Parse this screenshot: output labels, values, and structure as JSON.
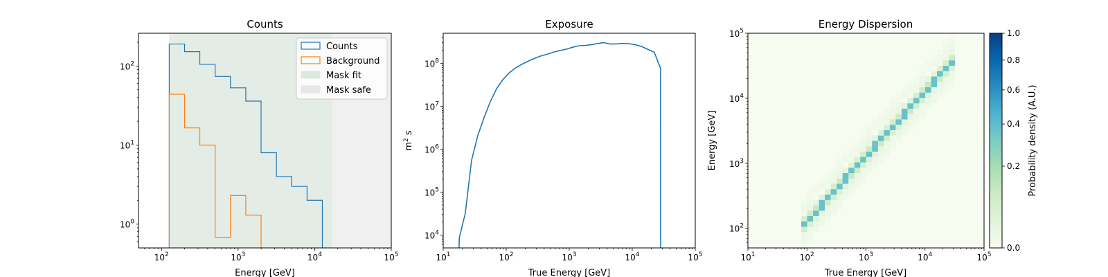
{
  "chart_data": [
    {
      "type": "step-histogram",
      "title": "Counts",
      "xlabel": "Energy [GeV]",
      "xscale": "log",
      "yscale": "log",
      "xlim": [
        50,
        100000
      ],
      "ylim": [
        0.5,
        260
      ],
      "xticks": [
        {
          "v": 100,
          "label": "10^2"
        },
        {
          "v": 1000,
          "label": "10^3"
        },
        {
          "v": 10000,
          "label": "10^4"
        },
        {
          "v": 100000,
          "label": "10^5"
        }
      ],
      "yticks": [
        {
          "v": 1,
          "label": "10^0"
        },
        {
          "v": 10,
          "label": "10^1"
        },
        {
          "v": 100,
          "label": "10^2"
        }
      ],
      "bin_edges": [
        126,
        200,
        316,
        501,
        794,
        1259,
        1995,
        3162,
        5012,
        7943,
        12589
      ],
      "series": [
        {
          "name": "Counts",
          "color": "#1f77b4",
          "values": [
            190,
            152,
            105,
            74,
            53,
            36,
            8,
            4,
            3,
            2
          ]
        },
        {
          "name": "Background",
          "color": "#ff7f0e",
          "values": [
            44,
            16.5,
            10,
            0.68,
            2.3,
            1.3,
            null,
            null,
            null,
            null
          ]
        }
      ],
      "shaded_regions": [
        {
          "name": "Mask fit",
          "x_from": 126,
          "x_to": 17000,
          "color": "#d9e7dc"
        },
        {
          "name": "Mask safe",
          "x_from": 126,
          "x_to": 100000,
          "color": "#e6e6e6"
        }
      ],
      "legend": [
        "Counts",
        "Background",
        "Mask fit",
        "Mask safe"
      ]
    },
    {
      "type": "line",
      "title": "Exposure",
      "xlabel": "True Energy [GeV]",
      "ylabel": "m² s",
      "ylabel_base": "m",
      "ylabel_sup": "2",
      "ylabel_rest": " s",
      "xscale": "log",
      "yscale": "log",
      "xlim": [
        10,
        100000
      ],
      "ylim": [
        5000,
        500000000
      ],
      "xticks": [
        {
          "v": 10,
          "label": "10^1"
        },
        {
          "v": 100,
          "label": "10^2"
        },
        {
          "v": 1000,
          "label": "10^3"
        },
        {
          "v": 10000,
          "label": "10^4"
        },
        {
          "v": 100000,
          "label": "10^5"
        }
      ],
      "yticks": [
        {
          "v": 10000,
          "label": "10^4"
        },
        {
          "v": 100000,
          "label": "10^5"
        },
        {
          "v": 1000000,
          "label": "10^6"
        },
        {
          "v": 10000000,
          "label": "10^7"
        },
        {
          "v": 100000000,
          "label": "10^8"
        }
      ],
      "series": [
        {
          "name": "Exposure",
          "color": "#1f77b4",
          "x": [
            17.8,
            18,
            22.4,
            28.2,
            35.5,
            44.7,
            56.2,
            70.8,
            89.1,
            112,
            141,
            178,
            224,
            282,
            355,
            447,
            562,
            708,
            891,
            1122,
            1413,
            1778,
            2239,
            2818,
            3548,
            4467,
            5623,
            7079,
            8913,
            11220,
            14125,
            17783,
            22387,
            28184,
            28200
          ],
          "y": [
            4500,
            8500,
            32000,
            550000,
            2100000,
            5500000,
            13000000,
            26000000,
            42000000,
            60000000,
            78000000,
            95000000,
            112000000,
            130000000,
            148000000,
            162000000,
            182000000,
            197000000,
            212000000,
            235000000,
            255000000,
            260000000,
            270000000,
            288000000,
            302000000,
            280000000,
            282000000,
            290000000,
            285000000,
            270000000,
            245000000,
            210000000,
            180000000,
            75000000,
            4500
          ]
        }
      ]
    },
    {
      "type": "heatmap",
      "title": "Energy Dispersion",
      "xlabel": "True Energy [GeV]",
      "ylabel": "Energy [GeV]",
      "xscale": "log",
      "yscale": "log",
      "xlim": [
        10,
        100000
      ],
      "ylim": [
        50,
        100000
      ],
      "xticks": [
        {
          "v": 10,
          "label": "10^1"
        },
        {
          "v": 100,
          "label": "10^2"
        },
        {
          "v": 1000,
          "label": "10^3"
        },
        {
          "v": 10000,
          "label": "10^4"
        },
        {
          "v": 100000,
          "label": "10^5"
        }
      ],
      "yticks": [
        {
          "v": 100,
          "label": "10^2"
        },
        {
          "v": 1000,
          "label": "10^3"
        },
        {
          "v": 10000,
          "label": "10^4"
        },
        {
          "v": 100000,
          "label": "10^5"
        }
      ],
      "colorscale": "GnBu",
      "colorbar": {
        "label": "Probability density (A.U.)",
        "range": [
          0,
          1
        ],
        "ticks": [
          {
            "v": 0,
            "label": "0.0"
          },
          {
            "v": 0.2,
            "label": "0.2"
          },
          {
            "v": 0.4,
            "label": "0.4"
          },
          {
            "v": 0.6,
            "label": "0.6"
          },
          {
            "v": 0.8,
            "label": "0.8"
          },
          {
            "v": 1.0,
            "label": "1.0"
          }
        ]
      },
      "description_of_values": {
        "diagonal_peak_density": 0.55,
        "true_energy_range": [
          80,
          30000
        ],
        "reconstructed_energy_range": [
          100,
          40000
        ]
      }
    }
  ]
}
